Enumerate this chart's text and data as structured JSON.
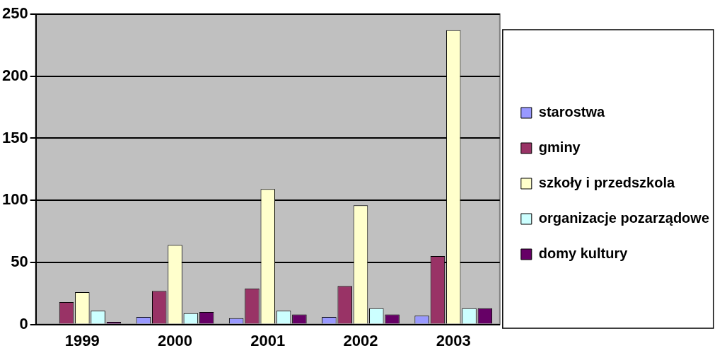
{
  "chart_data": {
    "type": "bar",
    "categories": [
      "1999",
      "2000",
      "2001",
      "2002",
      "2003"
    ],
    "series": [
      {
        "name": "starostwa",
        "color": "#9999ff",
        "values": [
          0,
          6,
          5,
          6,
          7
        ]
      },
      {
        "name": "gminy",
        "color": "#993366",
        "values": [
          18,
          27,
          29,
          31,
          55
        ]
      },
      {
        "name": "szkoły i przedszkola",
        "color": "#ffffcc",
        "values": [
          26,
          64,
          109,
          96,
          237
        ]
      },
      {
        "name": "organizacje pozarządowe",
        "color": "#ccffff",
        "values": [
          11,
          9,
          11,
          13,
          13
        ]
      },
      {
        "name": "domy kultury",
        "color": "#660066",
        "values": [
          2,
          10,
          8,
          8,
          13
        ]
      }
    ],
    "ylim": [
      0,
      250
    ],
    "yticks": [
      0,
      50,
      100,
      150,
      200,
      250
    ],
    "grid": "y",
    "legend": "right"
  }
}
